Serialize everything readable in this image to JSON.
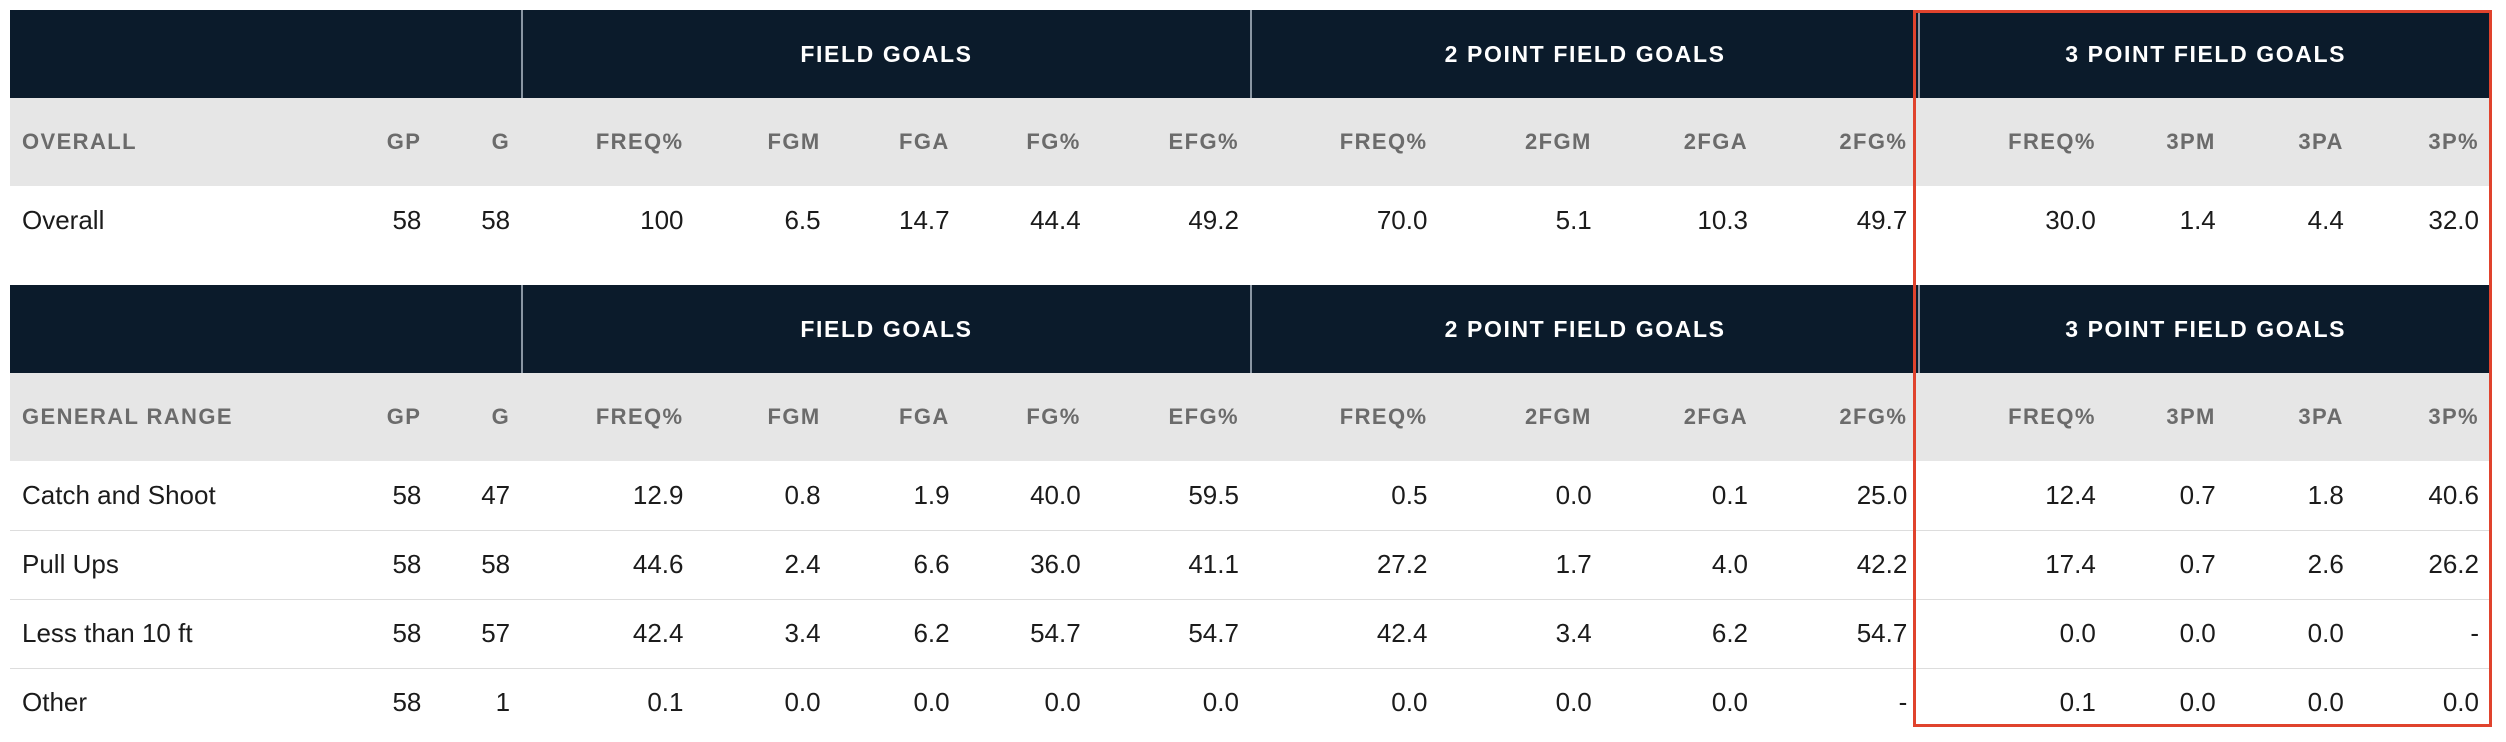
{
  "group_headers": [
    "",
    "FIELD GOALS",
    "2 POINT FIELD GOALS",
    "3 POINT FIELD GOALS"
  ],
  "overall_table": {
    "headers": [
      "OVERALL",
      "GP",
      "G",
      "FREQ%",
      "FGM",
      "FGA",
      "FG%",
      "EFG%",
      "FREQ%",
      "2FGM",
      "2FGA",
      "2FG%",
      "FREQ%",
      "3PM",
      "3PA",
      "3P%"
    ],
    "rows": [
      [
        "Overall",
        "58",
        "58",
        "100",
        "6.5",
        "14.7",
        "44.4",
        "49.2",
        "70.0",
        "5.1",
        "10.3",
        "49.7",
        "30.0",
        "1.4",
        "4.4",
        "32.0"
      ]
    ]
  },
  "range_table": {
    "headers": [
      "GENERAL RANGE",
      "GP",
      "G",
      "FREQ%",
      "FGM",
      "FGA",
      "FG%",
      "EFG%",
      "FREQ%",
      "2FGM",
      "2FGA",
      "2FG%",
      "FREQ%",
      "3PM",
      "3PA",
      "3P%"
    ],
    "rows": [
      [
        "Catch and Shoot",
        "58",
        "47",
        "12.9",
        "0.8",
        "1.9",
        "40.0",
        "59.5",
        "0.5",
        "0.0",
        "0.1",
        "25.0",
        "12.4",
        "0.7",
        "1.8",
        "40.6"
      ],
      [
        "Pull Ups",
        "58",
        "58",
        "44.6",
        "2.4",
        "6.6",
        "36.0",
        "41.1",
        "27.2",
        "1.7",
        "4.0",
        "42.2",
        "17.4",
        "0.7",
        "2.6",
        "26.2"
      ],
      [
        "Less than 10 ft",
        "58",
        "57",
        "42.4",
        "3.4",
        "6.2",
        "54.7",
        "54.7",
        "42.4",
        "3.4",
        "6.2",
        "54.7",
        "0.0",
        "0.0",
        "0.0",
        "-"
      ],
      [
        "Other",
        "58",
        "1",
        "0.1",
        "0.0",
        "0.0",
        "0.0",
        "0.0",
        "0.0",
        "0.0",
        "0.0",
        "-",
        "0.1",
        "0.0",
        "0.0",
        "0.0"
      ]
    ]
  },
  "colors": {
    "header_bg": "#0b1b2b",
    "subheader_bg": "#e6e6e6",
    "highlight_border": "#e0432d"
  }
}
